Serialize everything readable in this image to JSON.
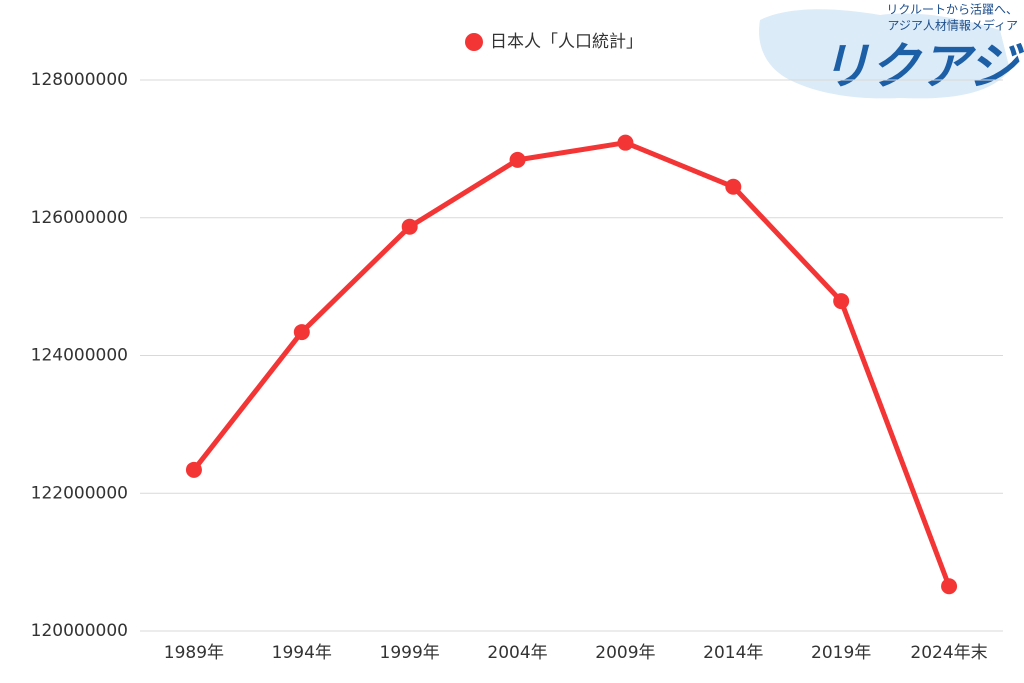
{
  "chart_data": {
    "type": "line",
    "categories": [
      "1989年",
      "1994年",
      "1999年",
      "2004年",
      "2009年",
      "2014年",
      "2019年",
      "2024年末"
    ],
    "series": [
      {
        "name": "日本人「人口統計」",
        "color": "#f33535",
        "values": [
          122340000,
          124340000,
          125870000,
          126840000,
          127090000,
          126450000,
          124790000,
          120650000
        ]
      }
    ],
    "ylim": [
      120000000,
      128000000
    ],
    "yticks": [
      120000000,
      122000000,
      124000000,
      126000000,
      128000000
    ],
    "grid": true,
    "legend": "top"
  },
  "logo": {
    "tagline_1": "リクルートから活躍へ、",
    "tagline_2": "アジア人材情報メディア",
    "name": "リクアジ"
  }
}
